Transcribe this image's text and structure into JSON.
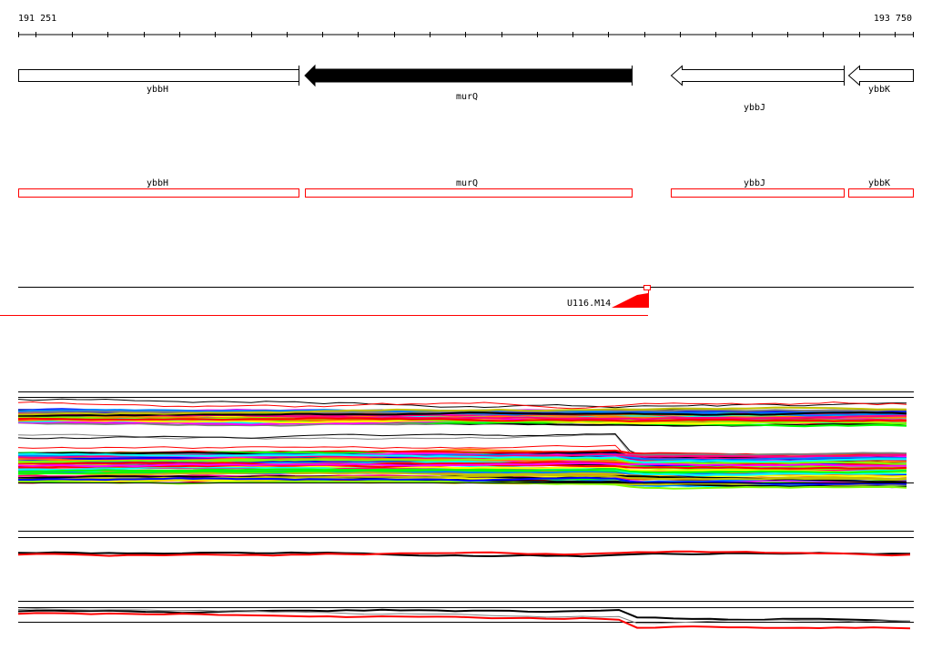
{
  "ruler": {
    "start_label": "191 251",
    "end_label": "193 750"
  },
  "genes_row1": [
    {
      "name": "ybbH",
      "strand": "+",
      "style": "open"
    },
    {
      "name": "murQ",
      "strand": "-",
      "style": "filled"
    },
    {
      "name": "ybbJ",
      "strand": "-",
      "style": "open"
    },
    {
      "name": "ybbK",
      "strand": "-",
      "style": "open"
    }
  ],
  "genes_row2": [
    {
      "name": "ybbH"
    },
    {
      "name": "murQ"
    },
    {
      "name": "ybbJ"
    },
    {
      "name": "ybbK"
    }
  ],
  "feature_track": {
    "label": "U116.M14",
    "color": "#ff0000"
  },
  "colors": {
    "outline": "#000000",
    "highlight": "#ff0000",
    "palette": [
      "#ff0000",
      "#00ff00",
      "#0000ff",
      "#ff00ff",
      "#00ffff",
      "#ffff00",
      "#ff8000",
      "#808080",
      "#0080ff",
      "#80ff00",
      "#ff0080",
      "#000000",
      "#c0c000"
    ]
  }
}
